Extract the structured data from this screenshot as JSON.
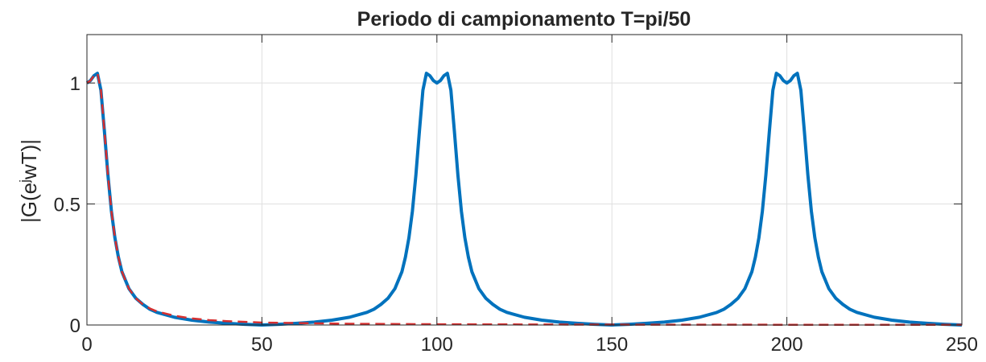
{
  "chart_data": {
    "type": "line",
    "title": "Periodo di campionamento T=pi/50",
    "ylabel_parts": [
      "|G(e",
      "j",
      "wT)|"
    ],
    "xlim": [
      0,
      250
    ],
    "xticks": [
      0,
      50,
      100,
      150,
      200,
      250
    ],
    "ylim": [
      0,
      1.2
    ],
    "yticks": [
      0,
      0.5,
      1
    ],
    "grid": true,
    "series": [
      {
        "color": "#0072bd",
        "dash": false,
        "x": [
          0,
          1,
          2,
          3,
          4,
          5,
          6,
          7,
          8,
          9,
          10,
          12,
          14,
          16,
          18,
          20,
          25,
          30,
          35,
          40,
          45,
          50,
          55,
          60,
          65,
          70,
          75,
          80,
          82,
          84,
          86,
          88,
          90,
          91,
          92,
          93,
          94,
          95,
          96,
          97,
          98,
          99,
          100,
          101,
          102,
          103,
          104,
          105,
          106,
          107,
          108,
          109,
          110,
          112,
          114,
          116,
          118,
          120,
          125,
          130,
          135,
          140,
          145,
          150,
          155,
          160,
          165,
          170,
          175,
          180,
          182,
          184,
          186,
          188,
          190,
          191,
          192,
          193,
          194,
          195,
          196,
          197,
          198,
          199,
          200,
          201,
          202,
          203,
          204,
          205,
          206,
          207,
          208,
          209,
          210,
          212,
          214,
          216,
          218,
          220,
          225,
          230,
          235,
          240,
          245,
          250
        ],
        "values": [
          1.0,
          1.01,
          1.03,
          1.04,
          0.97,
          0.8,
          0.62,
          0.47,
          0.36,
          0.28,
          0.22,
          0.15,
          0.11,
          0.085,
          0.065,
          0.052,
          0.032,
          0.02,
          0.012,
          0.007,
          0.003,
          0,
          0.003,
          0.007,
          0.012,
          0.02,
          0.032,
          0.052,
          0.065,
          0.085,
          0.11,
          0.15,
          0.22,
          0.28,
          0.36,
          0.47,
          0.62,
          0.8,
          0.97,
          1.04,
          1.03,
          1.01,
          1.0,
          1.01,
          1.03,
          1.04,
          0.97,
          0.8,
          0.62,
          0.47,
          0.36,
          0.28,
          0.22,
          0.15,
          0.11,
          0.085,
          0.065,
          0.052,
          0.032,
          0.02,
          0.012,
          0.007,
          0.003,
          0,
          0.003,
          0.007,
          0.012,
          0.02,
          0.032,
          0.052,
          0.065,
          0.085,
          0.11,
          0.15,
          0.22,
          0.28,
          0.36,
          0.47,
          0.62,
          0.8,
          0.97,
          1.04,
          1.03,
          1.01,
          1.0,
          1.01,
          1.03,
          1.04,
          0.97,
          0.8,
          0.62,
          0.47,
          0.36,
          0.28,
          0.22,
          0.15,
          0.11,
          0.085,
          0.065,
          0.052,
          0.032,
          0.02,
          0.012,
          0.007,
          0.003,
          0
        ]
      },
      {
        "color": "#d62f2f",
        "dash": true,
        "x": [
          0,
          1,
          2,
          3,
          4,
          5,
          6,
          7,
          8,
          9,
          10,
          12,
          14,
          16,
          18,
          20,
          25,
          30,
          35,
          40,
          50,
          75,
          100,
          150,
          200,
          250
        ],
        "values": [
          1.0,
          1.01,
          1.03,
          1.04,
          0.97,
          0.8,
          0.62,
          0.47,
          0.36,
          0.28,
          0.22,
          0.15,
          0.11,
          0.085,
          0.068,
          0.056,
          0.038,
          0.027,
          0.02,
          0.016,
          0.01,
          0.005,
          0.003,
          0.0015,
          0.001,
          0.0007
        ]
      }
    ]
  }
}
